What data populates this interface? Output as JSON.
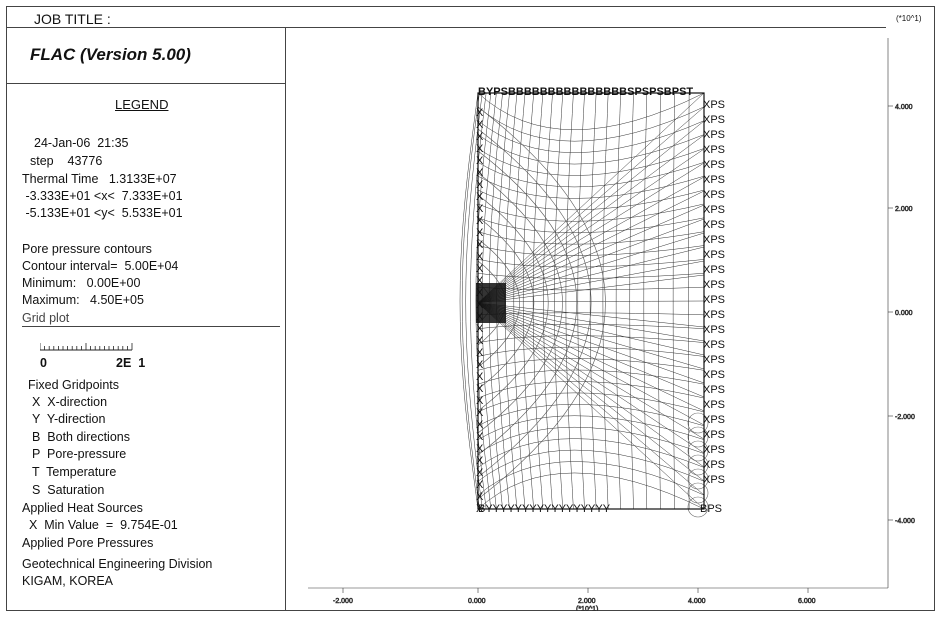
{
  "header": {
    "job_title": "JOB TITLE :",
    "unit_right": "(*10^1)"
  },
  "program": {
    "name": "FLAC (Version 5.00)"
  },
  "legend": {
    "title": "LEGEND",
    "date": "24-Jan-06  21:35",
    "step": "step    43776",
    "thermal_time": "Thermal Time   1.3133E+07",
    "x_range": " -3.333E+01 <x<  7.333E+01",
    "y_range": " -5.133E+01 <y<  5.533E+01",
    "contours_title": "Pore pressure contours",
    "contour_interval": "Contour interval=  5.00E+04",
    "minimum": "Minimum:   0.00E+00",
    "maximum": "Maximum:   4.50E+05",
    "grid_plot": "Grid plot",
    "scale_start": "0",
    "scale_end": "2E  1",
    "fixed_gridpoints": "Fixed Gridpoints",
    "fixed_items": [
      "X  X-direction",
      "Y  Y-direction",
      "B  Both directions",
      "P  Pore-pressure",
      "T  Temperature",
      "S  Saturation"
    ],
    "heat_sources": "Applied Heat Sources",
    "heat_min": "  X  Min Value  =  9.754E-01",
    "pore_pressures": "Applied Pore Pressures",
    "division": "Geotechnical Engineering Division",
    "org": "KIGAM, KOREA"
  },
  "plot": {
    "x_ticks": [
      "-2.000",
      "0.000",
      "2.000",
      "4.000",
      "6.000"
    ],
    "x_unit": "(*10^1)",
    "y_ticks": [
      "4.000",
      "2.000",
      "0.000",
      "-2.000",
      "-4.000"
    ],
    "top_label": "BYPSBBBBBBBBBBBBBBBSPSPSBPST",
    "bottom_label": "BYYYYYYYYYYYYYYYYY",
    "bottom_right_label": "BPS",
    "right_label": "XPS",
    "left_label": "X"
  }
}
